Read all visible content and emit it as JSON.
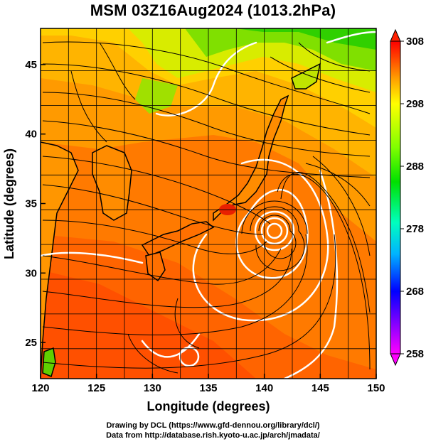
{
  "title": "MSM 03Z16Aug2024 (1013.2hPa)",
  "map": {
    "x_ticks": [
      120,
      125,
      130,
      135,
      140,
      145,
      150
    ],
    "y_ticks": [
      25,
      30,
      35,
      40,
      45
    ],
    "xlim": [
      120,
      150
    ],
    "ylim": [
      22.4,
      47.6
    ],
    "xlabel": "Longitude (degrees)",
    "ylabel": "Latitude  (degrees)",
    "grid": true,
    "typhoon_center": [
      140.8,
      33.4
    ]
  },
  "colorbar": {
    "ticks": [
      "308",
      "298",
      "288",
      "278",
      "268",
      "258"
    ],
    "min": 258,
    "max": 308,
    "colors": [
      "#ff00ff",
      "#8000ff",
      "#0000ff",
      "#00b4ff",
      "#00ffbe",
      "#00e000",
      "#80ff00",
      "#ffff00",
      "#ffc000",
      "#ff8000",
      "#ff4000",
      "#ff0000"
    ]
  },
  "credits": {
    "line1": "Drawing by DCL (https://www.gfd-dennou.org/library/dcl/)",
    "line2": "Data from http://database.rish.kyoto-u.ac.jp/arch/jmadata/"
  }
}
